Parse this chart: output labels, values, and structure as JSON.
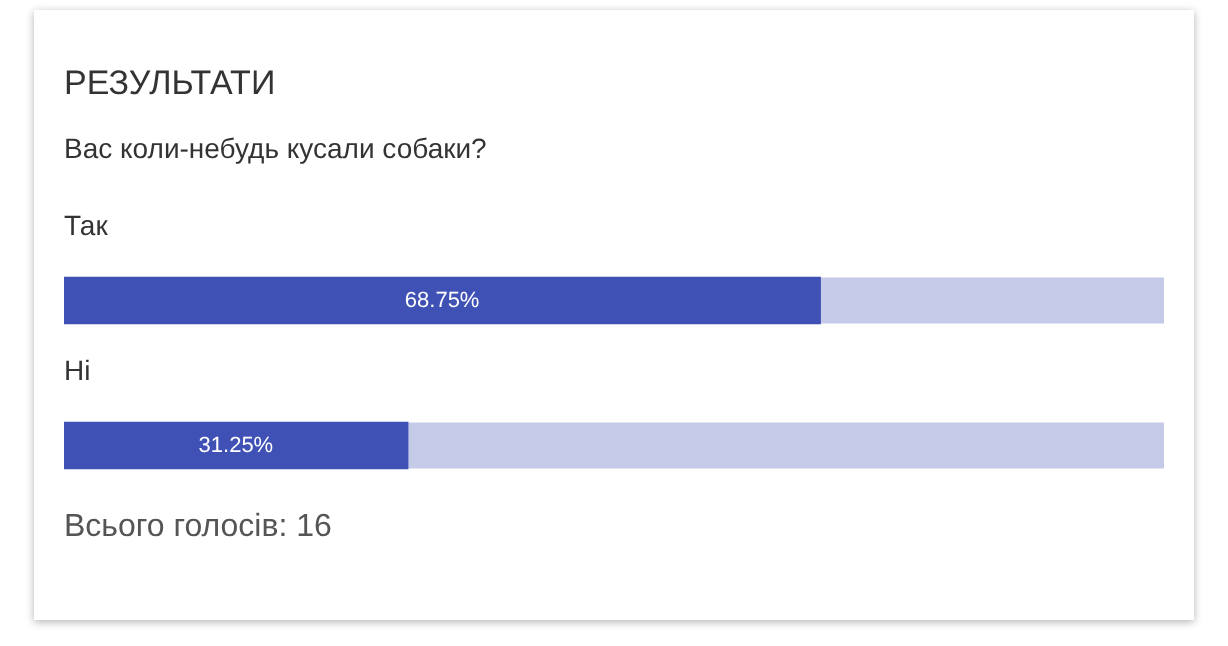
{
  "chart_data": {
    "type": "bar",
    "orientation": "horizontal",
    "title": "РЕЗУЛЬТАТИ",
    "subtitle": "Вас коли-небудь кусали собаки?",
    "categories": [
      "Так",
      "Ні"
    ],
    "values": [
      68.75,
      31.25
    ],
    "value_labels": [
      "68.75%",
      "31.25%"
    ],
    "color": "#3f51b5",
    "xlim": [
      0,
      100
    ],
    "tick_labels": false,
    "legend": false,
    "annotations": [
      "Всього голосів: 16"
    ]
  }
}
